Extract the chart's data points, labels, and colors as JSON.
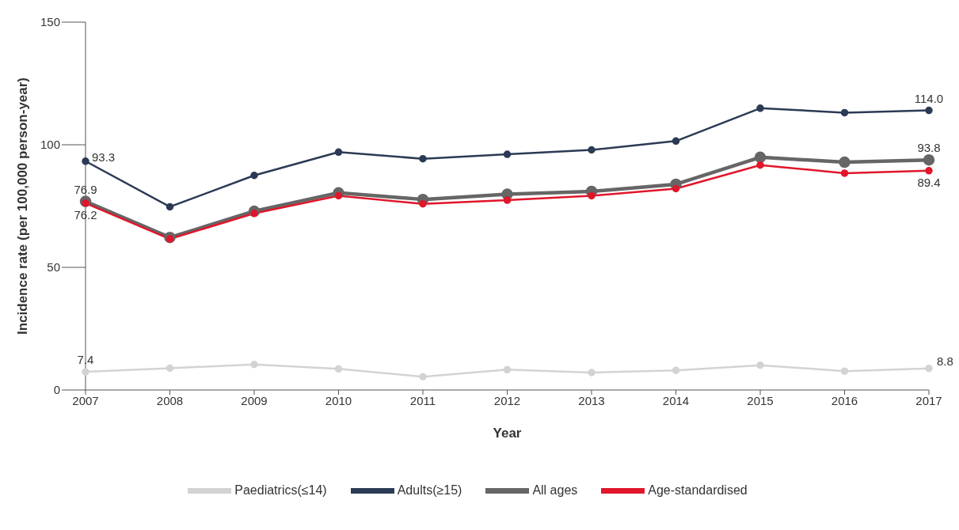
{
  "chart_data": {
    "type": "line",
    "xlabel": "Year",
    "ylabel": "Incidence rate (per 100,000 person-year)",
    "categories": [
      "2007",
      "2008",
      "2009",
      "2010",
      "2011",
      "2012",
      "2013",
      "2014",
      "2015",
      "2016",
      "2017"
    ],
    "ylim": [
      0,
      150
    ],
    "yticks": [
      0,
      50,
      100,
      150
    ],
    "grid": false,
    "legend": "bottom",
    "marker": "circle",
    "line_style": "solid",
    "series": [
      {
        "name": "Paediatrics(≤14)",
        "color": "#d3d3d3",
        "values": [
          7.4,
          8.9,
          10.4,
          8.6,
          5.4,
          8.3,
          7.1,
          8.0,
          10.1,
          7.7,
          8.8
        ],
        "value_labels": [
          "7.4",
          null,
          null,
          null,
          null,
          null,
          null,
          null,
          null,
          null,
          "8.8"
        ]
      },
      {
        "name": "Adults(≥15)",
        "color": "#2b3a55",
        "values": [
          93.3,
          74.7,
          87.5,
          97.0,
          94.3,
          96.1,
          97.9,
          101.5,
          114.9,
          113.1,
          114.0
        ],
        "value_labels": [
          "93.3",
          null,
          null,
          null,
          null,
          null,
          null,
          null,
          null,
          null,
          "114.0"
        ]
      },
      {
        "name": "All ages",
        "color": "#666666",
        "values": [
          76.9,
          62.2,
          72.9,
          80.4,
          77.7,
          79.8,
          81.0,
          83.9,
          94.9,
          92.9,
          93.8
        ],
        "value_labels": [
          "76.9",
          null,
          null,
          null,
          null,
          null,
          null,
          null,
          null,
          null,
          "93.8"
        ]
      },
      {
        "name": "Age-standardised",
        "color": "#e0162b",
        "values": [
          76.2,
          61.6,
          72.0,
          79.2,
          75.9,
          77.4,
          79.2,
          82.1,
          91.7,
          88.4,
          89.4
        ],
        "value_labels": [
          "76.2",
          null,
          null,
          null,
          null,
          null,
          null,
          null,
          null,
          null,
          "89.4"
        ]
      }
    ]
  }
}
